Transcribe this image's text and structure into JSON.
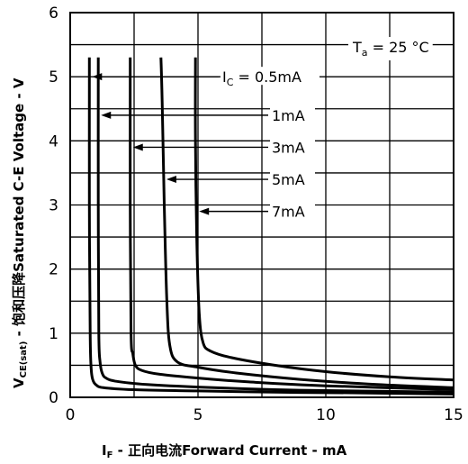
{
  "chart_data": {
    "type": "line",
    "ylabel": "V",
    "ylabel_sub": "CE(sat)",
    "ylabel_rest": " - 饱和压降Saturated C-E  Voltage - V",
    "xlabel": "I",
    "xlabel_sub": "F",
    "xlabel_rest": " - 正向电流Forward Current - mA",
    "xlim": [
      0,
      15
    ],
    "ylim": [
      0,
      6
    ],
    "x_ticks": [
      "0",
      "5",
      "10",
      "15"
    ],
    "y_ticks": [
      "0",
      "1",
      "2",
      "3",
      "4",
      "5",
      "6"
    ],
    "grid": true,
    "condition": {
      "symbol": "T",
      "sub": "a",
      "text": " = 25 °C"
    },
    "series": [
      {
        "name": "IC = 0.5mA",
        "label_main": "I",
        "label_sub": "C",
        "label_text": " = 0.5mA",
        "x": [
          0.75,
          0.75,
          0.78,
          0.82,
          0.88,
          1.0,
          1.3,
          2.5,
          5,
          8,
          11,
          15
        ],
        "y": [
          5.3,
          3.0,
          1.0,
          0.45,
          0.28,
          0.2,
          0.15,
          0.12,
          0.1,
          0.08,
          0.07,
          0.05
        ]
      },
      {
        "name": "1mA",
        "label_main": "",
        "label_sub": "",
        "label_text": "1mA",
        "x": [
          1.1,
          1.1,
          1.12,
          1.17,
          1.25,
          1.4,
          1.8,
          3,
          5,
          8,
          11,
          15
        ],
        "y": [
          5.3,
          3.0,
          1.0,
          0.55,
          0.38,
          0.3,
          0.25,
          0.2,
          0.16,
          0.12,
          0.1,
          0.08
        ]
      },
      {
        "name": "3mA",
        "label_main": "",
        "label_sub": "",
        "label_text": "3mA",
        "x": [
          2.35,
          2.35,
          2.38,
          2.45,
          2.55,
          2.8,
          3.5,
          5,
          7,
          10,
          15
        ],
        "y": [
          5.3,
          3.0,
          1.0,
          0.68,
          0.5,
          0.42,
          0.36,
          0.3,
          0.24,
          0.18,
          0.12
        ]
      },
      {
        "name": "5mA",
        "label_main": "",
        "label_sub": "",
        "label_text": "5mA",
        "x": [
          3.55,
          3.6,
          3.68,
          3.78,
          3.9,
          4.2,
          5,
          6.5,
          9,
          12,
          15
        ],
        "y": [
          5.3,
          4.6,
          3.0,
          1.5,
          0.8,
          0.55,
          0.47,
          0.38,
          0.28,
          0.2,
          0.15
        ]
      },
      {
        "name": "7mA",
        "label_main": "",
        "label_sub": "",
        "label_text": "7mA",
        "x": [
          4.9,
          4.9,
          4.95,
          5.05,
          5.2,
          5.5,
          6.3,
          8,
          10,
          12.5,
          15
        ],
        "y": [
          5.3,
          4.0,
          2.5,
          1.3,
          0.85,
          0.72,
          0.62,
          0.5,
          0.4,
          0.32,
          0.27
        ]
      }
    ]
  }
}
